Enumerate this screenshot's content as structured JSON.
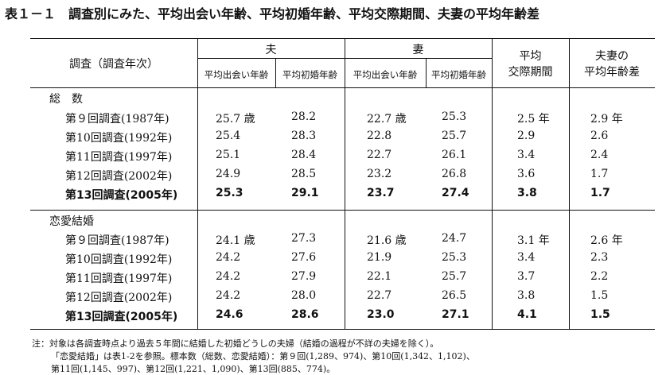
{
  "title": "表１－１　調査別にみた、平均出会い年齢、平均初婚年齢、平均交際期間、夫妻の平均年齢差",
  "header": {
    "survey_col": "調査（調査年次）",
    "husband": "夫",
    "wife": "妻",
    "husband_meet": "平均出会い年齢",
    "husband_marry": "平均初婚年齢",
    "wife_meet": "平均出会い年齢",
    "wife_marry": "平均初婚年齢",
    "courtship_l1": "平均",
    "courtship_l2": "交際期間",
    "agediff_l1": "夫妻の",
    "agediff_l2": "平均年齢差"
  },
  "groups": [
    {
      "name": "総　数",
      "rows": [
        {
          "label": "第９回調査(1987年)",
          "h_meet": "25.7 歳",
          "h_marry": "28.2",
          "w_meet": "22.7 歳",
          "w_marry": "25.3",
          "court": "2.5 年",
          "diff": "2.9 年"
        },
        {
          "label": "第10回調査(1992年)",
          "h_meet": "25.4",
          "h_marry": "28.3",
          "w_meet": "22.8",
          "w_marry": "25.7",
          "court": "2.9",
          "diff": "2.6"
        },
        {
          "label": "第11回調査(1997年)",
          "h_meet": "25.1",
          "h_marry": "28.4",
          "w_meet": "22.7",
          "w_marry": "26.1",
          "court": "3.4",
          "diff": "2.4"
        },
        {
          "label": "第12回調査(2002年)",
          "h_meet": "24.9",
          "h_marry": "28.5",
          "w_meet": "23.2",
          "w_marry": "26.8",
          "court": "3.6",
          "diff": "1.7"
        },
        {
          "label": "第13回調査(2005年)",
          "h_meet": "25.3",
          "h_marry": "29.1",
          "w_meet": "23.7",
          "w_marry": "27.4",
          "court": "3.8",
          "diff": "1.7"
        }
      ]
    },
    {
      "name": "恋愛結婚",
      "rows": [
        {
          "label": "第９回調査(1987年)",
          "h_meet": "24.1 歳",
          "h_marry": "27.3",
          "w_meet": "21.6 歳",
          "w_marry": "24.7",
          "court": "3.1 年",
          "diff": "2.6 年"
        },
        {
          "label": "第10回調査(1992年)",
          "h_meet": "24.2",
          "h_marry": "27.6",
          "w_meet": "21.9",
          "w_marry": "25.3",
          "court": "3.4",
          "diff": "2.3"
        },
        {
          "label": "第11回調査(1997年)",
          "h_meet": "24.2",
          "h_marry": "27.9",
          "w_meet": "22.1",
          "w_marry": "25.7",
          "court": "3.7",
          "diff": "2.2"
        },
        {
          "label": "第12回調査(2002年)",
          "h_meet": "24.2",
          "h_marry": "28.0",
          "w_meet": "22.7",
          "w_marry": "26.5",
          "court": "3.8",
          "diff": "1.5"
        },
        {
          "label": "第13回調査(2005年)",
          "h_meet": "24.6",
          "h_marry": "28.6",
          "w_meet": "23.0",
          "w_marry": "27.1",
          "court": "4.1",
          "diff": "1.5"
        }
      ]
    }
  ],
  "notes": [
    "注：対象は各調査時点より過去５年間に結婚した初婚どうしの夫婦（結婚の過程が不詳の夫婦を除く）。",
    "「恋愛結婚」は表1-2を参照。標本数（総数、恋愛結婚）：第９回(1,289、974)、第10回(1,342、1,102)、",
    "第11回(1,145、997)、第12回(1,221、1,090)、第13回(885、774)。"
  ]
}
